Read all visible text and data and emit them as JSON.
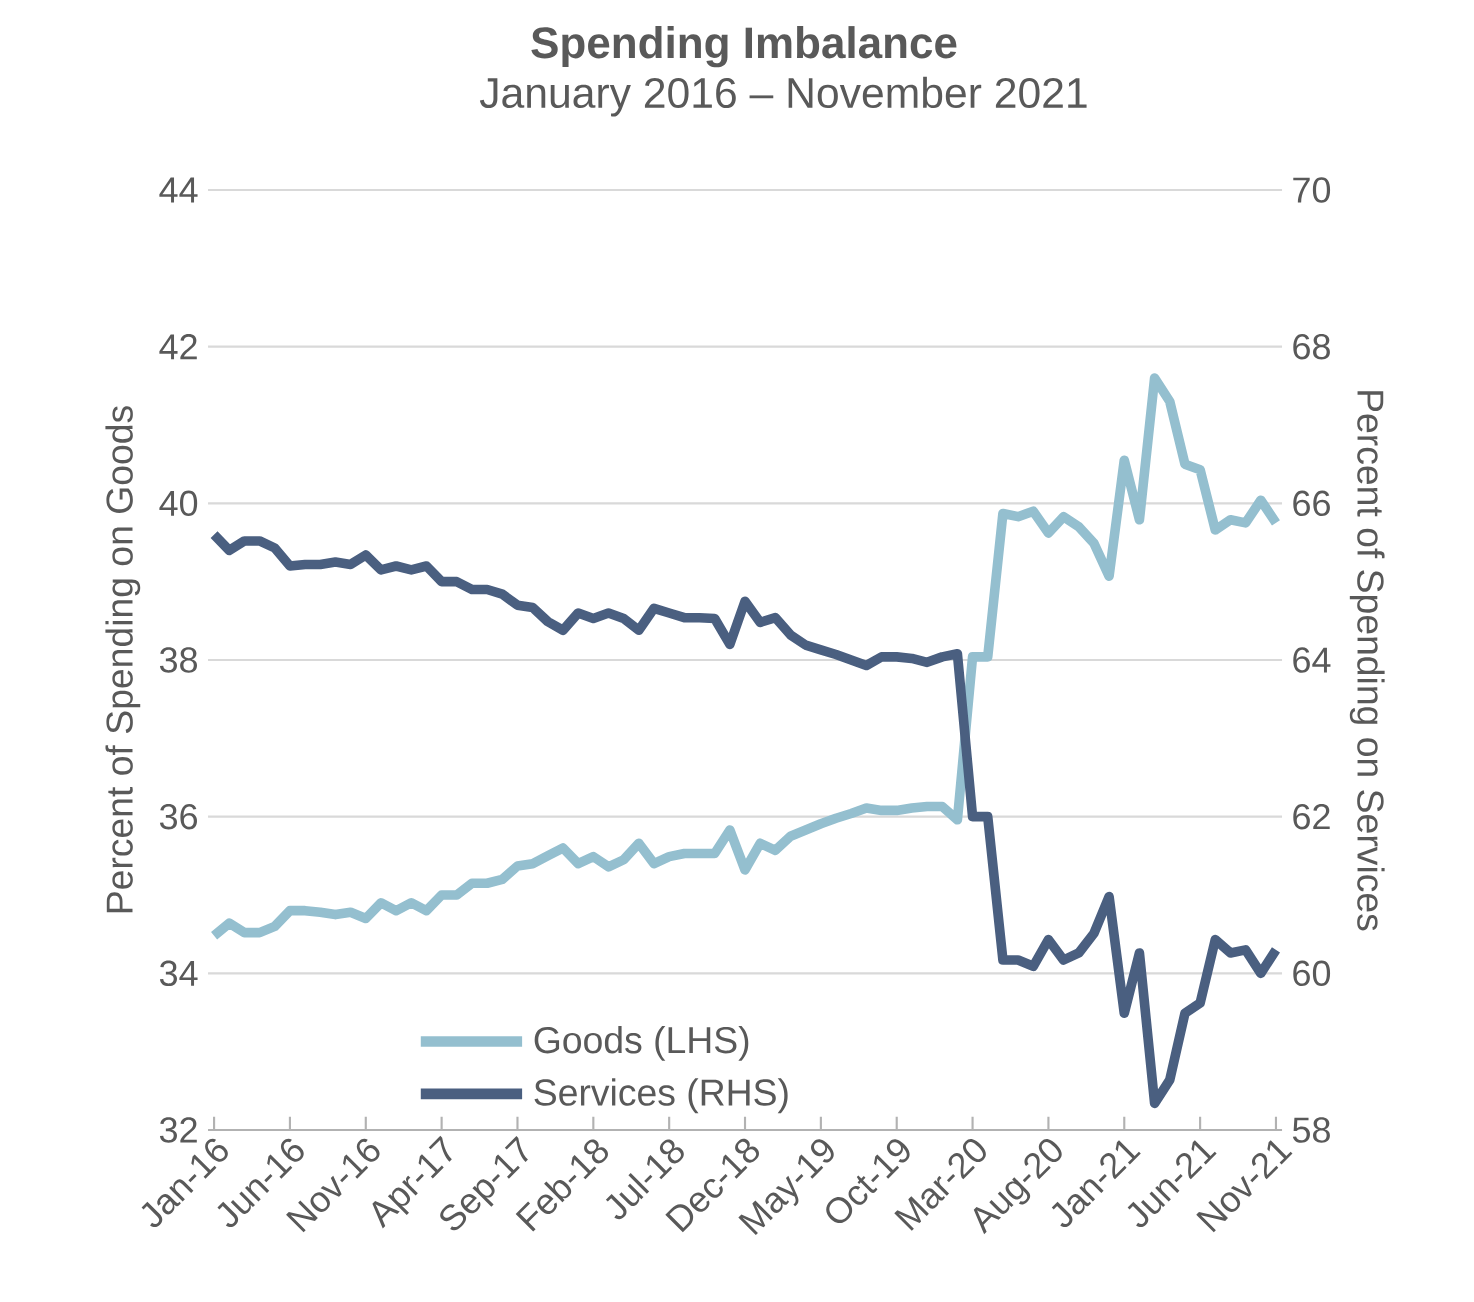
{
  "chart_data": {
    "type": "line",
    "title": "Spending Imbalance",
    "subtitle": "January 2016 – November 2021",
    "ylabel": "Percent of Spending on Goods",
    "y2label": "Percent of Spending on Services",
    "categories": [
      "Jan-16",
      null,
      null,
      null,
      null,
      "Jun-16",
      null,
      null,
      null,
      null,
      "Nov-16",
      null,
      null,
      null,
      null,
      "Apr-17",
      null,
      null,
      null,
      null,
      "Sep-17",
      null,
      null,
      null,
      null,
      "Feb-18",
      null,
      null,
      null,
      null,
      "Jul-18",
      null,
      null,
      null,
      null,
      "Dec-18",
      null,
      null,
      null,
      null,
      "May-19",
      null,
      null,
      null,
      null,
      "Oct-19",
      null,
      null,
      null,
      null,
      "Mar-20",
      null,
      null,
      null,
      null,
      "Aug-20",
      null,
      null,
      null,
      null,
      "Jan-21",
      null,
      null,
      null,
      null,
      "Jun-21",
      null,
      null,
      null,
      null,
      "Nov-21"
    ],
    "series": [
      {
        "name": "Goods (LHS)",
        "color": "#94bfcf",
        "values": [
          34.48,
          34.64,
          34.52,
          34.52,
          34.6,
          34.8,
          34.8,
          34.78,
          34.75,
          34.78,
          34.7,
          34.9,
          34.8,
          34.9,
          34.8,
          35.0,
          35.0,
          35.15,
          35.15,
          35.2,
          35.37,
          35.4,
          35.5,
          35.6,
          35.4,
          35.49,
          35.36,
          35.45,
          35.66,
          35.4,
          35.49,
          35.53,
          35.53,
          35.53,
          35.83,
          35.32,
          35.66,
          35.57,
          35.75,
          35.83,
          35.91,
          35.98,
          36.04,
          36.11,
          36.08,
          36.08,
          36.11,
          36.13,
          36.13,
          35.96,
          38.04,
          38.04,
          39.87,
          39.83,
          39.9,
          39.62,
          39.83,
          39.7,
          39.49,
          39.07,
          40.55,
          39.79,
          41.6,
          41.3,
          40.5,
          40.43,
          39.66,
          39.79,
          39.75,
          40.04,
          39.75
        ]
      },
      {
        "name": "Services (RHS)",
        "color": "#4a5f80",
        "axis": "y2",
        "values": [
          65.6,
          65.4,
          65.52,
          65.52,
          65.43,
          65.2,
          65.22,
          65.22,
          65.25,
          65.22,
          65.34,
          65.15,
          65.2,
          65.15,
          65.2,
          65.0,
          65.0,
          64.9,
          64.9,
          64.84,
          64.7,
          64.67,
          64.49,
          64.38,
          64.6,
          64.53,
          64.6,
          64.53,
          64.38,
          64.66,
          64.6,
          64.54,
          64.54,
          64.53,
          64.2,
          64.75,
          64.48,
          64.54,
          64.32,
          64.19,
          64.13,
          64.07,
          64.0,
          63.93,
          64.04,
          64.04,
          64.02,
          63.97,
          64.04,
          64.08,
          62.0,
          62.0,
          60.17,
          60.17,
          60.09,
          60.43,
          60.17,
          60.26,
          60.51,
          60.98,
          59.49,
          60.26,
          58.34,
          58.64,
          59.49,
          59.62,
          60.43,
          60.26,
          60.3,
          60.0,
          60.3
        ]
      }
    ],
    "ylim": [
      32,
      44
    ],
    "yticks": [
      32,
      34,
      36,
      38,
      40,
      42,
      44
    ],
    "y2lim": [
      58,
      70
    ],
    "y2ticks": [
      58,
      60,
      62,
      64,
      66,
      68,
      70
    ],
    "grid": "y",
    "legend": "bottom",
    "line_style": "solid"
  }
}
